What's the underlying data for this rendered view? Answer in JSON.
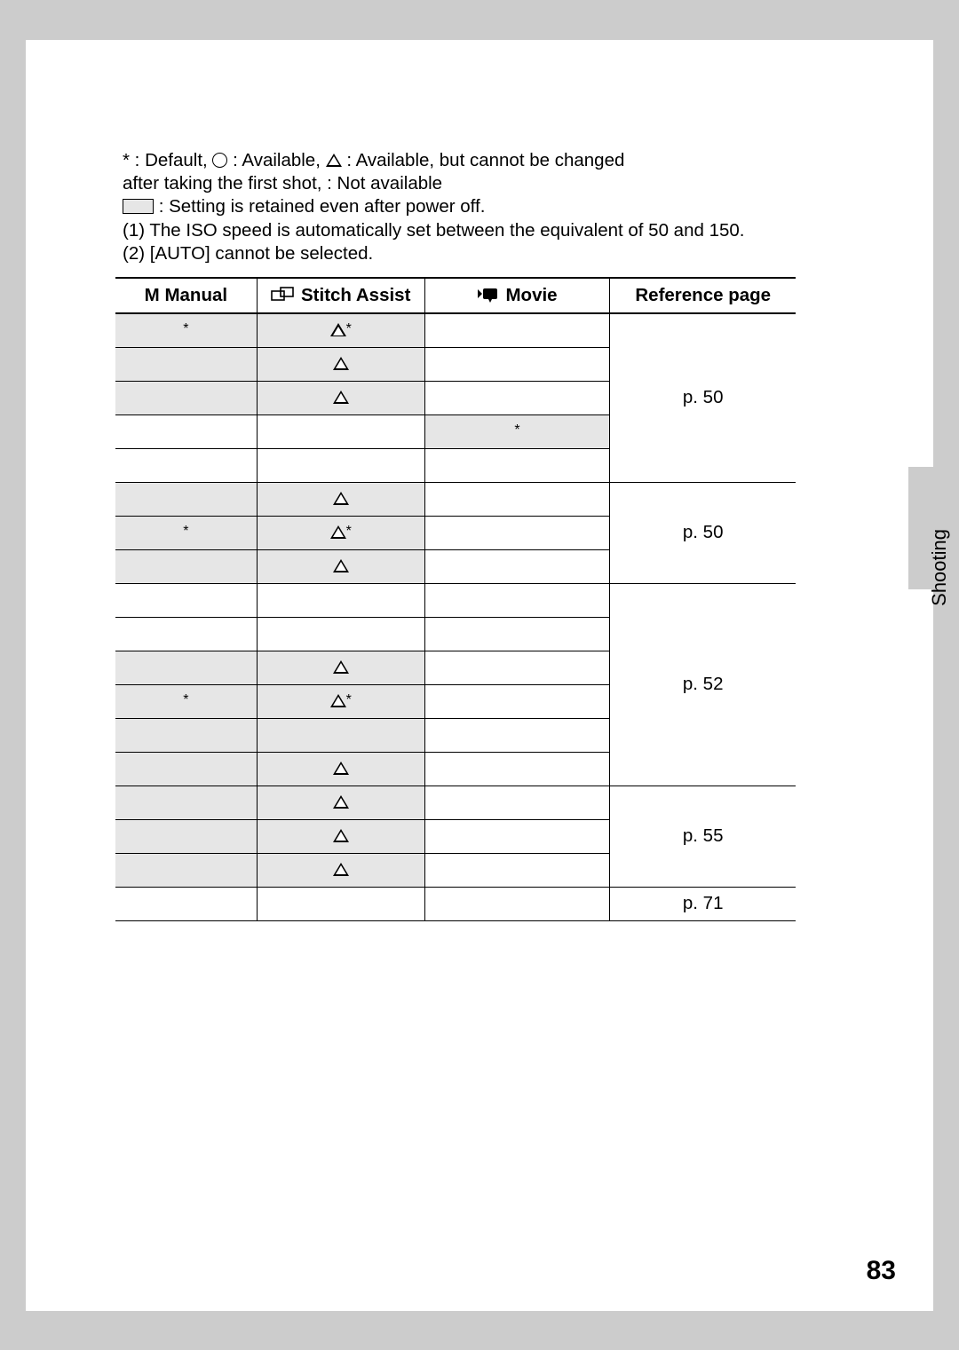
{
  "legend": {
    "l1_a": "* : Default,   ",
    "l1_b": " : Available,   ",
    "l1_c": " : Available, but cannot be changed",
    "l2": "after taking the first shot,        : Not available",
    "l3": " : Setting is retained even after power off.",
    "n1": "(1)  The ISO speed is automatically set between the equivalent of 50 and 150.",
    "n2": "(2)  [AUTO] cannot be selected."
  },
  "symbols": {
    "triangle": "△",
    "triangle_star": "△*",
    "star": "*"
  },
  "headers": {
    "manual_prefix": "M ",
    "manual": "Manual",
    "stitch": "Stitch Assist",
    "movie": "Movie",
    "ref": "Reference page"
  },
  "rows": [
    {
      "manual": "*",
      "manual_shade": true,
      "stitch": "△*",
      "stitch_shade": true,
      "movie": "",
      "movie_shade": false
    },
    {
      "manual": "",
      "manual_shade": true,
      "stitch": "△",
      "stitch_shade": true,
      "movie": "",
      "movie_shade": false
    },
    {
      "manual": "",
      "manual_shade": true,
      "stitch": "△",
      "stitch_shade": true,
      "movie": "",
      "movie_shade": false
    },
    {
      "manual": "",
      "manual_shade": false,
      "stitch": "",
      "stitch_shade": false,
      "movie": "*",
      "movie_shade": true
    },
    {
      "manual": "",
      "manual_shade": false,
      "stitch": "",
      "stitch_shade": false,
      "movie": "",
      "movie_shade": false
    },
    {
      "manual": "",
      "manual_shade": true,
      "stitch": "△",
      "stitch_shade": true,
      "movie": "",
      "movie_shade": false
    },
    {
      "manual": "*",
      "manual_shade": true,
      "stitch": "△*",
      "stitch_shade": true,
      "movie": "",
      "movie_shade": false
    },
    {
      "manual": "",
      "manual_shade": true,
      "stitch": "△",
      "stitch_shade": true,
      "movie": "",
      "movie_shade": false
    },
    {
      "manual": "",
      "manual_shade": false,
      "stitch": "",
      "stitch_shade": false,
      "movie": "",
      "movie_shade": false
    },
    {
      "manual": "",
      "manual_shade": false,
      "stitch": "",
      "stitch_shade": false,
      "movie": "",
      "movie_shade": false
    },
    {
      "manual": "",
      "manual_shade": true,
      "stitch": "△",
      "stitch_shade": true,
      "movie": "",
      "movie_shade": false
    },
    {
      "manual": "*",
      "manual_shade": true,
      "stitch": "△*",
      "stitch_shade": true,
      "movie": "",
      "movie_shade": false
    },
    {
      "manual": "",
      "manual_shade": true,
      "stitch": "",
      "stitch_shade": true,
      "movie": "",
      "movie_shade": false
    },
    {
      "manual": "",
      "manual_shade": true,
      "stitch": "△",
      "stitch_shade": true,
      "movie": "",
      "movie_shade": false
    },
    {
      "manual": "",
      "manual_shade": true,
      "stitch": "△",
      "stitch_shade": true,
      "movie": "",
      "movie_shade": false
    },
    {
      "manual": "",
      "manual_shade": true,
      "stitch": "△",
      "stitch_shade": true,
      "movie": "",
      "movie_shade": false
    },
    {
      "manual": "",
      "manual_shade": true,
      "stitch": "△",
      "stitch_shade": true,
      "movie": "",
      "movie_shade": false
    },
    {
      "manual": "",
      "manual_shade": false,
      "stitch": "",
      "stitch_shade": false,
      "movie": "",
      "movie_shade": false
    }
  ],
  "ref_groups": [
    {
      "span": 5,
      "label": "p. 50"
    },
    {
      "span": 3,
      "label": "p. 50"
    },
    {
      "span": 6,
      "label": "p. 52"
    },
    {
      "span": 3,
      "label": "p. 55"
    },
    {
      "span": 1,
      "label": "p. 71"
    }
  ],
  "side_tab": "Shooting",
  "page_number": "83"
}
